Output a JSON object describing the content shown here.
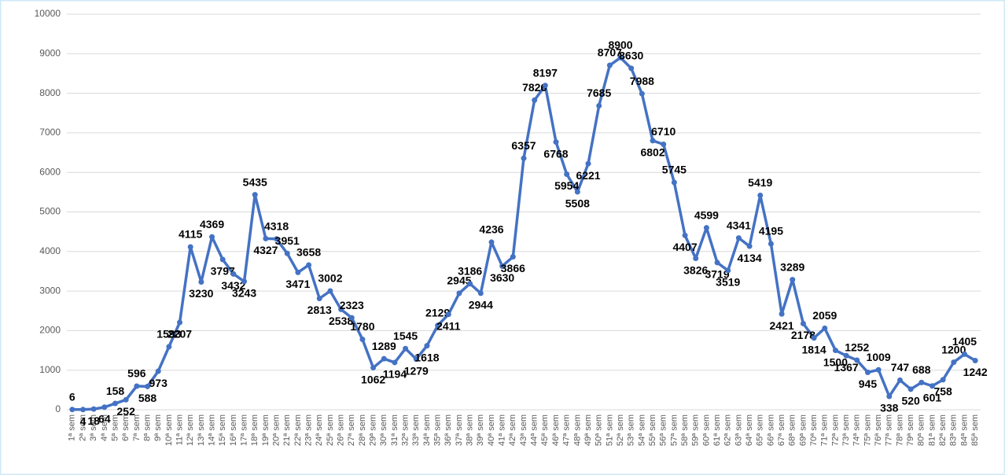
{
  "chart_data": {
    "type": "line",
    "categories": [
      "1ª sem",
      "2ª sem",
      "3ª sem",
      "4ª sem",
      "5ª sem",
      "6ª sem",
      "7ª sem",
      "8ª sem",
      "9ª sem",
      "10ª sem",
      "11ª sem",
      "12ª sem",
      "13ª sem",
      "14ª sem",
      "15ª sem",
      "16ª sem",
      "17ª sem",
      "18ª sem",
      "19ª sem",
      "20ª sem",
      "21ª sem",
      "22ª sem",
      "23ª sem",
      "24ª sem",
      "25ª sem",
      "26ª sem",
      "27ª sem",
      "28ª sem",
      "29ª sem",
      "30ª sem",
      "31ª sem",
      "32ª sem",
      "33ª sem",
      "34ª sem",
      "35ª sem",
      "36ª sem",
      "37ª sem",
      "38ª sem",
      "39ª sem",
      "40ª sem",
      "41ª sem",
      "42ª sem",
      "43ª sem",
      "44ª sem",
      "45ª sem",
      "46ª sem",
      "47ª sem",
      "48ª sem",
      "49ª sem",
      "50ª sem",
      "51ª sem",
      "52ª sem",
      "53ª sem",
      "54ª sem",
      "55ª sem",
      "56ª sem",
      "57ª sem",
      "58ª sem",
      "59ª sem",
      "60ª sem",
      "61ª sem",
      "62ª sem",
      "63ª sem",
      "64ª sem",
      "65ª sem",
      "66ª sem",
      "67ª sem",
      "68ª sem",
      "69ª sem",
      "70ª sem",
      "71ª sem",
      "72ª sem",
      "73ª sem",
      "74ª sem",
      "75ª sem",
      "76ª sem",
      "77ª sem",
      "78ª sem",
      "79ª sem",
      "80ª sem",
      "81ª sem",
      "82ª sem",
      "83ª sem",
      "84ª sem",
      "85ª sem"
    ],
    "series": [
      {
        "color": "#4472c4",
        "values": [
          6,
          4,
          18,
          64,
          158,
          252,
          596,
          588,
          973,
          1593,
          2207,
          4115,
          3230,
          4369,
          3797,
          3432,
          3243,
          5435,
          4327,
          4318,
          3951,
          3471,
          3658,
          2813,
          3002,
          2538,
          2323,
          1780,
          1062,
          1289,
          1194,
          1545,
          1279,
          1618,
          2129,
          2411,
          2945,
          3186,
          2944,
          4236,
          3630,
          3866,
          6357,
          7826,
          8197,
          6768,
          5954,
          5508,
          6221,
          7685,
          8707,
          8900,
          8630,
          7988,
          6802,
          6710,
          5745,
          4407,
          3826,
          4599,
          3719,
          3519,
          4341,
          4134,
          5419,
          4195,
          2421,
          3289,
          2178,
          1814,
          2059,
          1500,
          1367,
          1252,
          945,
          1009,
          338,
          747,
          520,
          688,
          601,
          758,
          1200,
          1405,
          1242
        ]
      }
    ],
    "ylim": [
      0,
      10000
    ],
    "yticks": [
      0,
      1000,
      2000,
      3000,
      4000,
      5000,
      6000,
      7000,
      8000,
      9000,
      10000
    ],
    "grid": true
  }
}
